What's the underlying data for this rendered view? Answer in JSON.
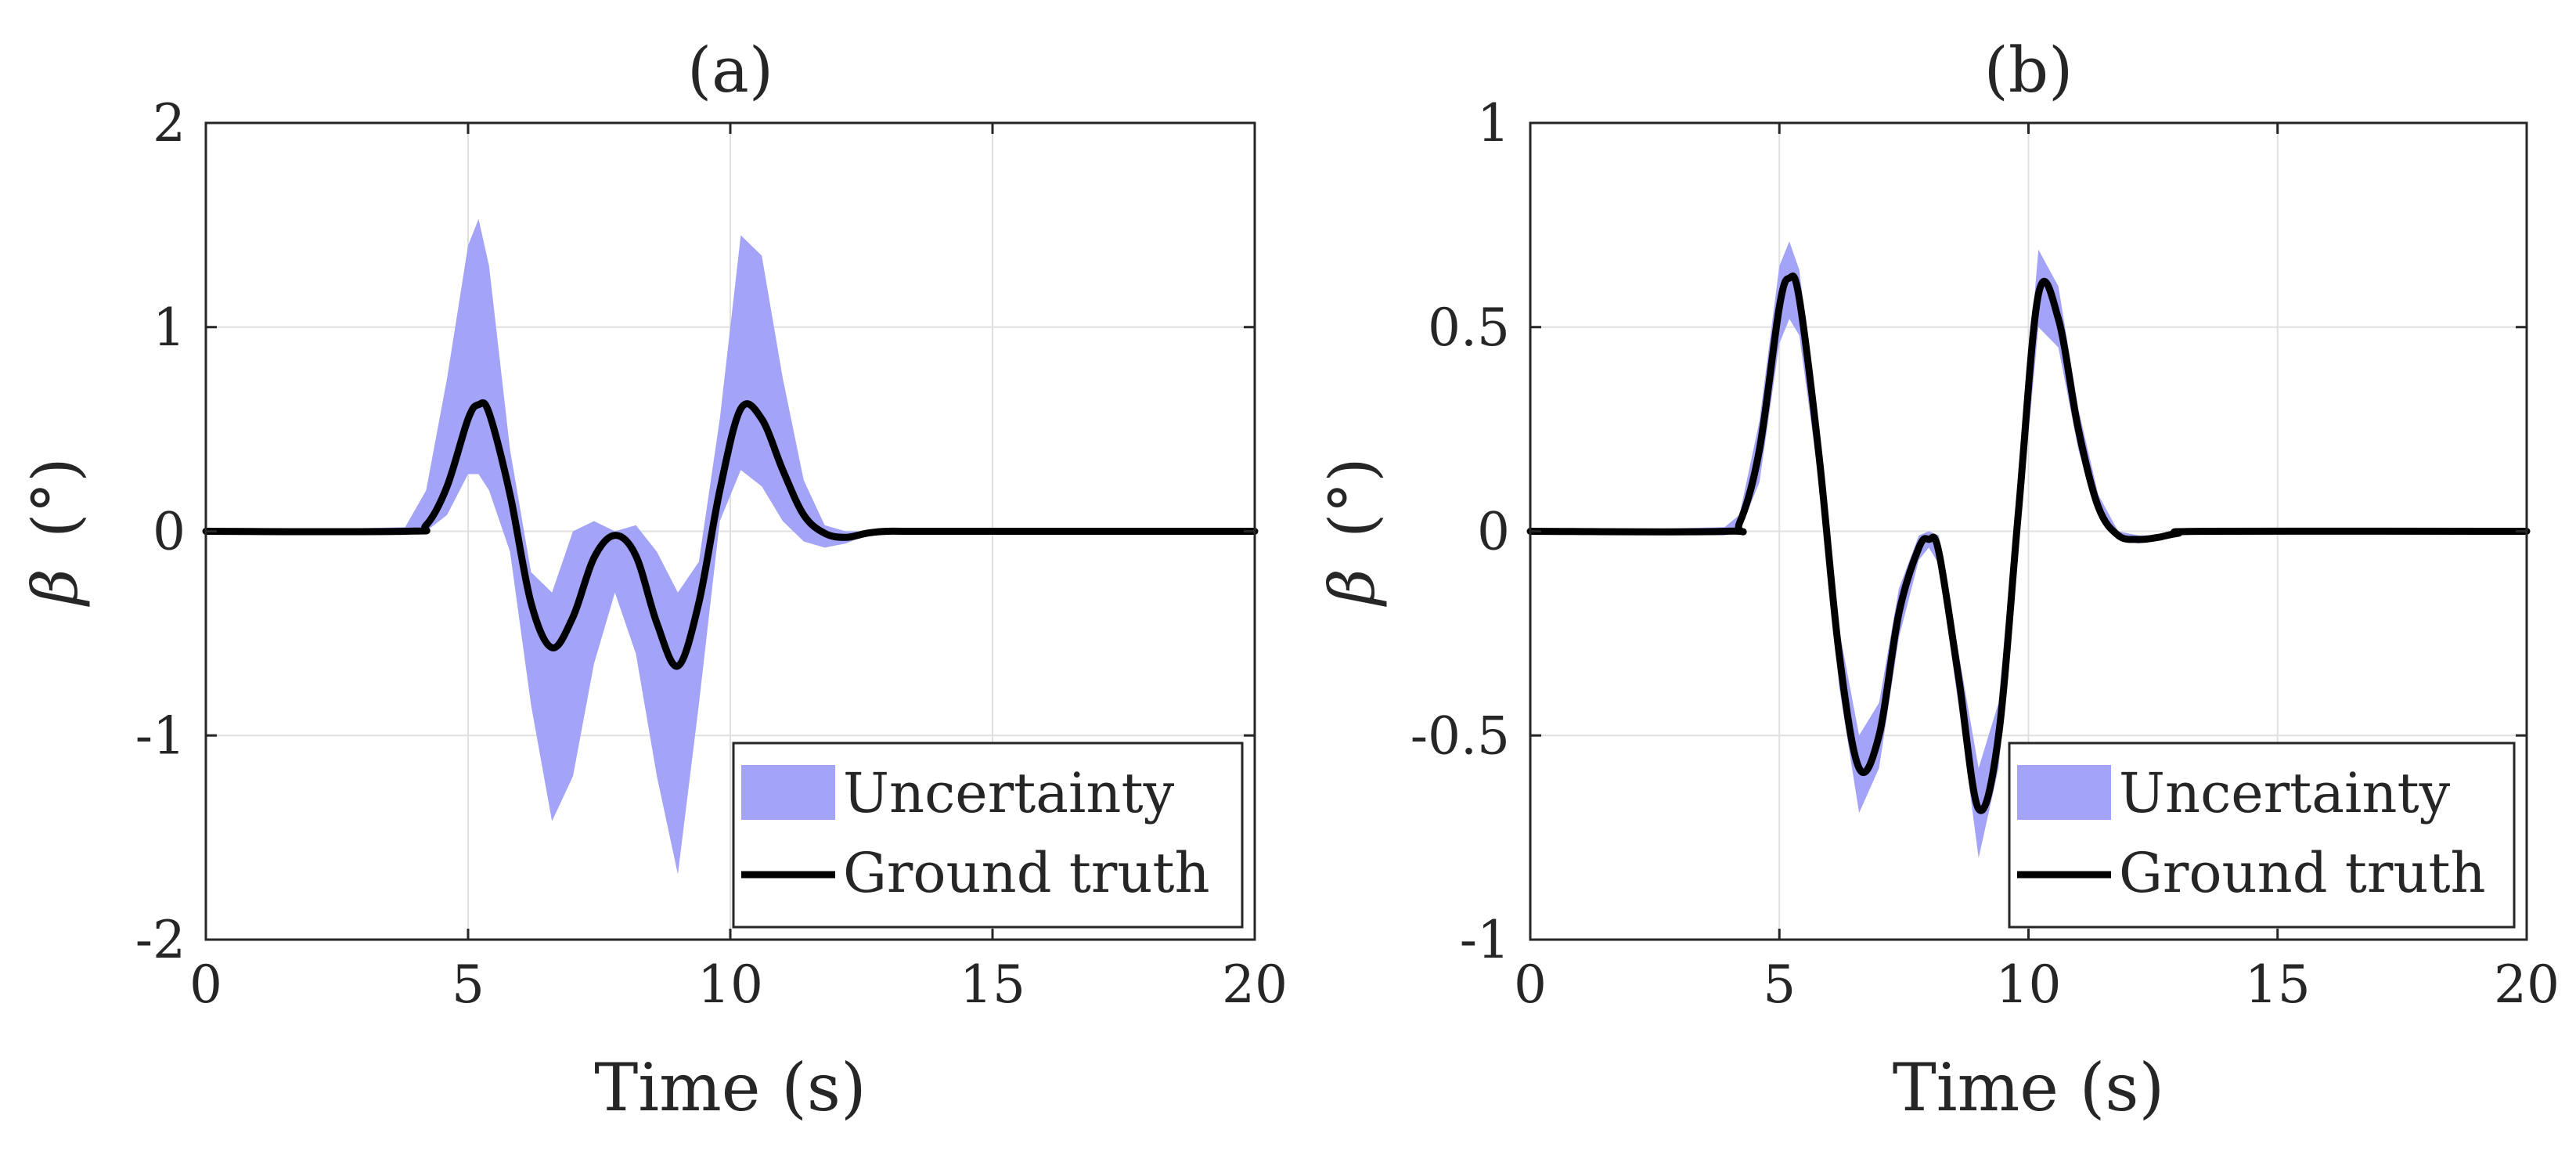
{
  "chart_data": [
    {
      "type": "line",
      "title": "(a)",
      "xlabel": "Time (s)",
      "ylabel_symbol": "β",
      "ylabel_unit": "(°)",
      "xlim": [
        0,
        20
      ],
      "ylim": [
        -2,
        2
      ],
      "xticks": [
        0,
        5,
        10,
        15,
        20
      ],
      "xtick_labels": [
        "0",
        "5",
        "10",
        "15",
        "20"
      ],
      "yticks": [
        -2,
        -1,
        0,
        1,
        2
      ],
      "ytick_labels": [
        "-2",
        "-1",
        "0",
        "1",
        "2"
      ],
      "grid": true,
      "legend": {
        "position": "bottom-right",
        "entries": [
          "Uncertainty",
          "Ground truth"
        ]
      },
      "colors": {
        "band": "#a3a3f8",
        "line": "#000000"
      },
      "series": [
        {
          "name": "Ground truth",
          "kind": "line",
          "x": [
            0,
            3.8,
            4.2,
            4.6,
            5.0,
            5.2,
            5.4,
            5.8,
            6.2,
            6.6,
            7.0,
            7.4,
            7.8,
            8.2,
            8.6,
            9.0,
            9.4,
            9.8,
            10.2,
            10.6,
            11.0,
            11.4,
            11.8,
            12.2,
            12.6,
            13.0,
            14.0,
            20
          ],
          "y": [
            0,
            0,
            0.03,
            0.22,
            0.55,
            0.62,
            0.58,
            0.18,
            -0.35,
            -0.57,
            -0.42,
            -0.13,
            -0.02,
            -0.12,
            -0.45,
            -0.66,
            -0.35,
            0.2,
            0.6,
            0.55,
            0.3,
            0.08,
            -0.01,
            -0.03,
            -0.01,
            0,
            0,
            0
          ]
        },
        {
          "name": "Uncertainty",
          "kind": "band",
          "x": [
            0,
            3.8,
            4.2,
            4.6,
            5.0,
            5.2,
            5.4,
            5.8,
            6.2,
            6.6,
            7.0,
            7.4,
            7.8,
            8.2,
            8.6,
            9.0,
            9.4,
            9.8,
            10.2,
            10.6,
            11.0,
            11.4,
            11.8,
            12.2,
            12.6,
            13.0,
            14.0,
            20
          ],
          "upper": [
            0,
            0.02,
            0.2,
            0.75,
            1.4,
            1.53,
            1.3,
            0.4,
            -0.2,
            -0.3,
            0.0,
            0.05,
            0.0,
            0.03,
            -0.1,
            -0.3,
            -0.15,
            0.55,
            1.45,
            1.35,
            0.75,
            0.25,
            0.03,
            0.0,
            0.0,
            0,
            0,
            0
          ],
          "lower": [
            0,
            -0.01,
            0.0,
            0.08,
            0.28,
            0.28,
            0.2,
            -0.1,
            -0.85,
            -1.42,
            -1.2,
            -0.65,
            -0.3,
            -0.6,
            -1.2,
            -1.68,
            -0.85,
            0.05,
            0.3,
            0.22,
            0.05,
            -0.05,
            -0.08,
            -0.06,
            -0.02,
            0,
            0,
            0
          ]
        }
      ]
    },
    {
      "type": "line",
      "title": "(b)",
      "xlabel": "Time (s)",
      "ylabel_symbol": "β",
      "ylabel_unit": "(°)",
      "xlim": [
        0,
        20
      ],
      "ylim": [
        -1,
        1
      ],
      "xticks": [
        0,
        5,
        10,
        15,
        20
      ],
      "xtick_labels": [
        "0",
        "5",
        "10",
        "15",
        "20"
      ],
      "yticks": [
        -1,
        -0.5,
        0,
        0.5,
        1
      ],
      "ytick_labels": [
        "-1",
        "-0.5",
        "0",
        "0.5",
        "1"
      ],
      "grid": true,
      "legend": {
        "position": "bottom-right",
        "entries": [
          "Uncertainty",
          "Ground truth"
        ]
      },
      "colors": {
        "band": "#a3a3f8",
        "line": "#000000"
      },
      "series": [
        {
          "name": "Ground truth",
          "kind": "line",
          "x": [
            0,
            3.9,
            4.2,
            4.6,
            5.0,
            5.2,
            5.4,
            5.8,
            6.2,
            6.6,
            7.0,
            7.4,
            7.8,
            8.0,
            8.2,
            8.6,
            9.0,
            9.4,
            9.8,
            10.2,
            10.6,
            11.0,
            11.4,
            11.8,
            12.2,
            12.6,
            13.0,
            13.6,
            20
          ],
          "y": [
            0,
            0,
            0.02,
            0.2,
            0.55,
            0.62,
            0.57,
            0.18,
            -0.3,
            -0.58,
            -0.5,
            -0.2,
            -0.04,
            -0.02,
            -0.05,
            -0.36,
            -0.68,
            -0.5,
            0.05,
            0.58,
            0.52,
            0.25,
            0.06,
            -0.01,
            -0.02,
            -0.015,
            -0.005,
            0,
            0
          ]
        },
        {
          "name": "Uncertainty",
          "kind": "band",
          "x": [
            0,
            3.9,
            4.2,
            4.6,
            5.0,
            5.2,
            5.4,
            5.8,
            6.2,
            6.6,
            7.0,
            7.4,
            7.8,
            8.0,
            8.2,
            8.6,
            9.0,
            9.4,
            9.8,
            10.2,
            10.6,
            11.0,
            11.4,
            11.8,
            12.2,
            12.6,
            13.0,
            13.6,
            20
          ],
          "upper": [
            0,
            0.01,
            0.04,
            0.27,
            0.65,
            0.71,
            0.64,
            0.24,
            -0.24,
            -0.5,
            -0.42,
            -0.14,
            -0.01,
            0.0,
            -0.01,
            -0.3,
            -0.58,
            -0.42,
            0.12,
            0.69,
            0.6,
            0.3,
            0.09,
            0.0,
            -0.01,
            -0.01,
            0.0,
            0,
            0
          ],
          "lower": [
            0,
            -0.01,
            0.0,
            0.12,
            0.46,
            0.52,
            0.48,
            0.12,
            -0.38,
            -0.69,
            -0.58,
            -0.26,
            -0.07,
            -0.04,
            -0.08,
            -0.43,
            -0.8,
            -0.58,
            -0.02,
            0.5,
            0.45,
            0.2,
            0.04,
            -0.02,
            -0.03,
            -0.02,
            -0.01,
            0,
            0
          ]
        }
      ]
    }
  ]
}
